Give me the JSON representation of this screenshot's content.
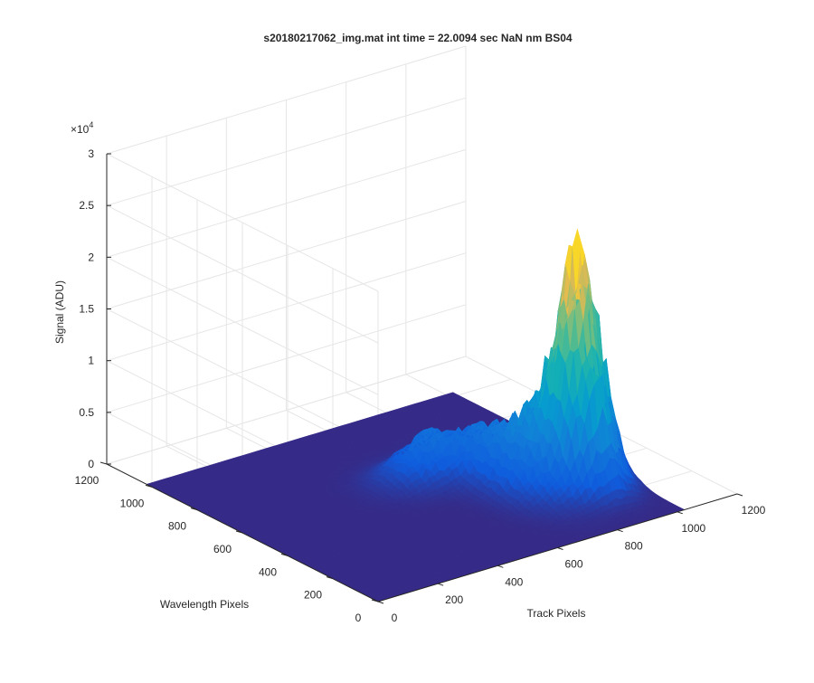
{
  "figure": {
    "title": "s20180217062_img.mat int time = 22.0094 sec  NaN nm BS04"
  },
  "chart_data": {
    "type": "surface",
    "title": "s20180217062_img.mat int time = 22.0094 sec  NaN nm BS04",
    "xlabel": "Track Pixels",
    "ylabel": "Wavelength Pixels",
    "zlabel": "Signal (ADU)",
    "xlim": [
      0,
      1200
    ],
    "ylim": [
      0,
      1200
    ],
    "zlim": [
      0,
      30000
    ],
    "z_exponent_label": "×10",
    "z_exponent_power": "4",
    "x_ticks": [
      "0",
      "200",
      "400",
      "600",
      "800",
      "1000",
      "1200"
    ],
    "y_ticks": [
      "0",
      "200",
      "400",
      "600",
      "800",
      "1000",
      "1200"
    ],
    "z_ticks": [
      "0",
      "0.5",
      "1",
      "1.5",
      "2",
      "2.5",
      "3"
    ],
    "colormap": "parula",
    "grid": true,
    "surface_extent": {
      "x": [
        0,
        1024
      ],
      "y": [
        0,
        1024
      ]
    },
    "peak": {
      "x": 900,
      "y": 300,
      "z": 22000
    },
    "secondary_peak": {
      "x": 620,
      "y": 600,
      "z": 4000
    },
    "baseline_z": 0
  },
  "colors": {
    "base": "#352a87",
    "mid": "#0f5cdd",
    "cyan": "#1ab2b0",
    "green": "#7fbf7b",
    "peak": "#f9c934"
  }
}
